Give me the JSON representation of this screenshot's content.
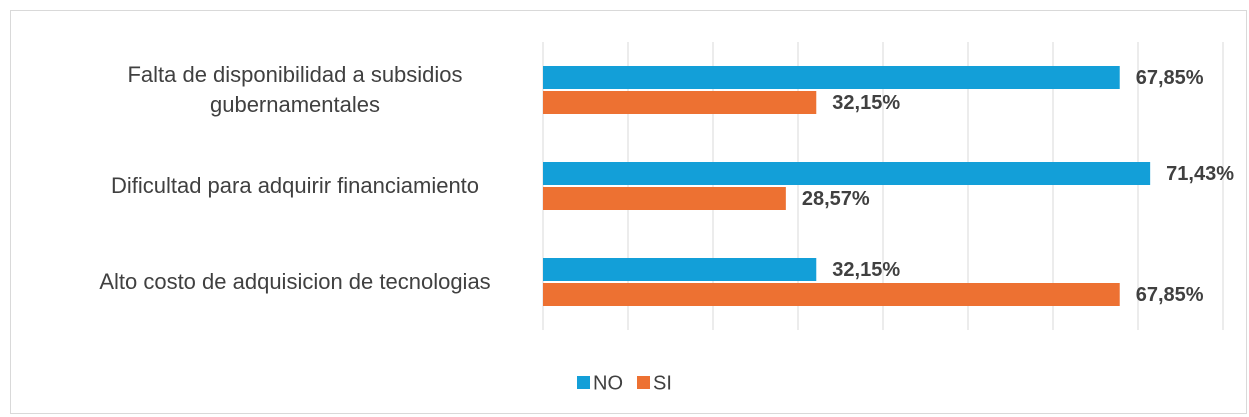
{
  "chart_data": {
    "type": "hbar",
    "categories": [
      "Falta de disponibilidad a subsidios gubernamentales",
      "Dificultad para adquirir financiamiento",
      "Alto costo de adquisicion de tecnologias"
    ],
    "series": [
      {
        "name": "NO",
        "color": "#139fd8",
        "values": [
          67.85,
          71.43,
          32.15
        ],
        "value_labels": [
          "67,85%",
          "71,43%",
          "32,15%"
        ]
      },
      {
        "name": "SI",
        "color": "#ed7132",
        "values": [
          32.15,
          28.57,
          67.85
        ],
        "value_labels": [
          "32,15%",
          "28,57%",
          "67,85%"
        ]
      }
    ],
    "xlim": [
      0,
      80
    ],
    "xticks": [
      0,
      10,
      20,
      30,
      40,
      50,
      60,
      70,
      80
    ],
    "grid": true,
    "legend": "bottom"
  }
}
